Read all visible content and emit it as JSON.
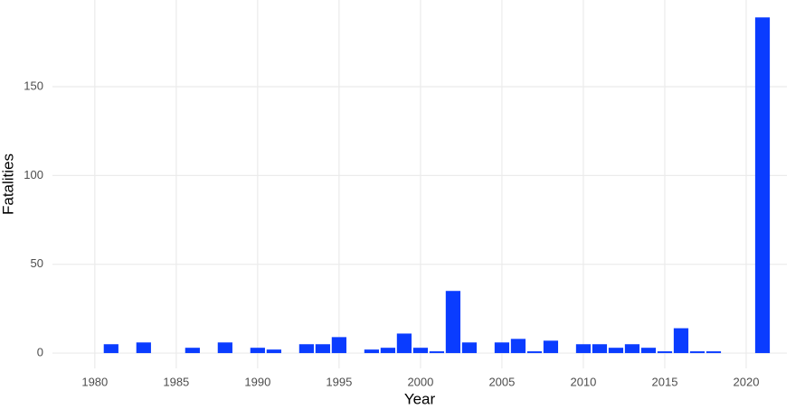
{
  "chart_data": {
    "type": "bar",
    "x_label": "Year",
    "y_label": "Fatalities",
    "x": [
      1981,
      1983,
      1986,
      1988,
      1990,
      1991,
      1993,
      1994,
      1995,
      1997,
      1998,
      1999,
      2000,
      2001,
      2002,
      2003,
      2005,
      2006,
      2007,
      2008,
      2010,
      2011,
      2012,
      2013,
      2014,
      2015,
      2016,
      2017,
      2018,
      2021
    ],
    "values": [
      5,
      6,
      3,
      6,
      3,
      2,
      5,
      5,
      9,
      2,
      3,
      11,
      3,
      1,
      35,
      6,
      6,
      8,
      1,
      7,
      5,
      5,
      3,
      5,
      3,
      1,
      14,
      1,
      1,
      189
    ],
    "color": "#0a3cff",
    "xlim": [
      1977.4,
      2022.5
    ],
    "xticks": [
      1980,
      1985,
      1990,
      1995,
      2000,
      2005,
      2010,
      2015,
      2020
    ],
    "ylim": [
      -8.6,
      198.8
    ],
    "yticks": [
      0,
      50,
      100,
      150
    ],
    "grid": true
  }
}
